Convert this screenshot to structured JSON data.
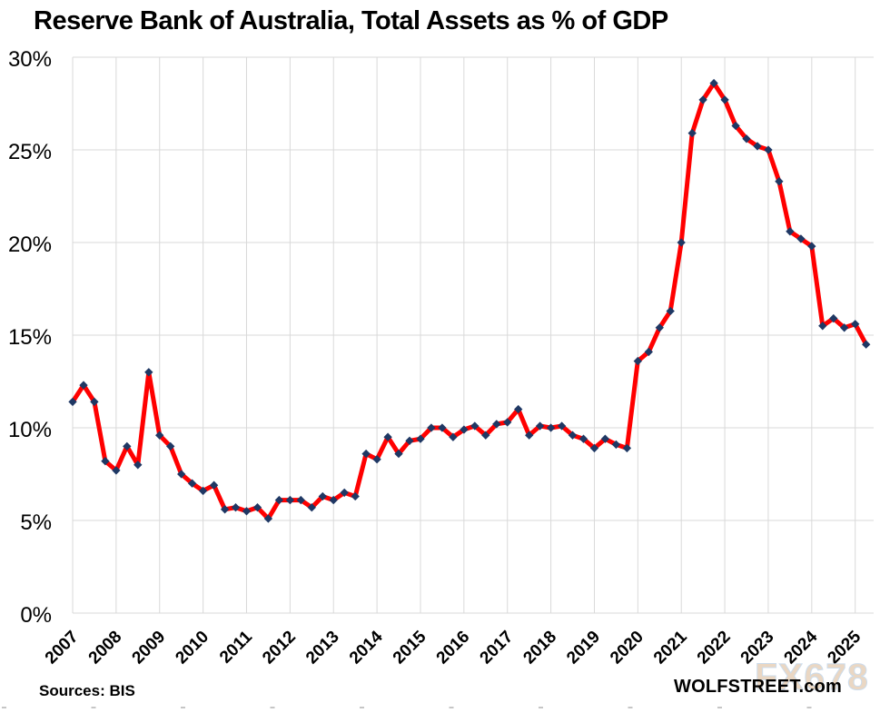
{
  "title": "Reserve Bank of Australia, Total Assets as % of GDP",
  "source_note": "Sources: BIS",
  "branding": "WOLFSTREET.com",
  "watermark": "FX678",
  "colors": {
    "line": "#ff0000",
    "marker": "#1f3864",
    "grid": "#d9d9d9",
    "text": "#000000",
    "watermark_fill": "#ead7c3",
    "watermark_edge": "#ccdcec"
  },
  "chart_data": {
    "type": "line",
    "title": "Reserve Bank of Australia, Total Assets as % of GDP",
    "xlabel": "",
    "ylabel": "",
    "frequency": "quarterly",
    "x_start": "2007-Q1",
    "x_end": "2025-Q2",
    "years": [
      "2007",
      "2008",
      "2009",
      "2010",
      "2011",
      "2012",
      "2013",
      "2014",
      "2015",
      "2016",
      "2017",
      "2018",
      "2019",
      "2020",
      "2021",
      "2022",
      "2023",
      "2024",
      "2025"
    ],
    "y_ticks": [
      "30%",
      "25%",
      "20%",
      "15%",
      "10%",
      "5%",
      "0%"
    ],
    "y_tick_values": [
      30,
      25,
      20,
      15,
      10,
      5,
      0
    ],
    "ylim": [
      0,
      30
    ],
    "grid": true,
    "legend": false,
    "series": [
      {
        "name": "RBA total assets as % of GDP",
        "values": [
          11.4,
          12.3,
          11.4,
          8.2,
          7.7,
          9.0,
          8.0,
          13.0,
          9.6,
          9.0,
          7.5,
          7.0,
          6.6,
          6.9,
          5.6,
          5.7,
          5.5,
          5.7,
          5.1,
          6.1,
          6.1,
          6.1,
          5.7,
          6.3,
          6.1,
          6.5,
          6.3,
          8.6,
          8.3,
          9.5,
          8.6,
          9.3,
          9.4,
          10.0,
          10.0,
          9.5,
          9.9,
          10.1,
          9.6,
          10.2,
          10.3,
          11.0,
          9.6,
          10.1,
          10.0,
          10.1,
          9.6,
          9.4,
          8.9,
          9.4,
          9.1,
          8.9,
          13.6,
          14.1,
          15.4,
          16.3,
          20.0,
          25.9,
          27.7,
          28.6,
          27.7,
          26.3,
          25.6,
          25.2,
          25.0,
          23.3,
          20.6,
          20.2,
          19.8,
          15.5,
          15.9,
          15.4,
          15.6,
          14.5
        ]
      }
    ]
  }
}
